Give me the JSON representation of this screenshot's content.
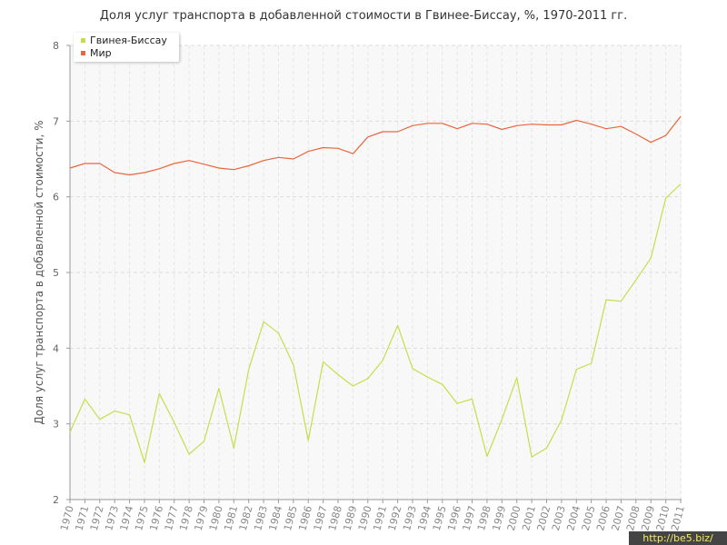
{
  "chart_data": {
    "type": "line",
    "title": "Доля услуг транспорта в добавленной стоимости в Гвинее-Биссау, %, 1970-2011 гг.",
    "ylabel": "Доля услуг транспорта в добавленной стоимости, %",
    "xlabel": "",
    "ylim": [
      2,
      8
    ],
    "yticks": [
      "2",
      "3",
      "4",
      "5",
      "6",
      "7",
      "8"
    ],
    "grid": true,
    "legend_position": "top-left",
    "x": [
      "1970",
      "1971",
      "1972",
      "1973",
      "1974",
      "1975",
      "1976",
      "1977",
      "1978",
      "1979",
      "1980",
      "1981",
      "1982",
      "1983",
      "1984",
      "1985",
      "1986",
      "1987",
      "1988",
      "1989",
      "1990",
      "1991",
      "1992",
      "1993",
      "1994",
      "1995",
      "1996",
      "1997",
      "1998",
      "1999",
      "2000",
      "2001",
      "2002",
      "2003",
      "2004",
      "2005",
      "2006",
      "2007",
      "2008",
      "2009",
      "2010",
      "2011"
    ],
    "series": [
      {
        "name": "Гвинея-Биссау",
        "color": "#c6dd4a",
        "values": [
          2.89,
          3.33,
          3.06,
          3.17,
          3.12,
          2.49,
          3.4,
          3.02,
          2.6,
          2.77,
          3.47,
          2.68,
          3.72,
          4.35,
          4.2,
          3.78,
          2.78,
          3.82,
          3.65,
          3.5,
          3.6,
          3.84,
          4.3,
          3.73,
          3.62,
          3.52,
          3.27,
          3.33,
          2.57,
          3.06,
          3.61,
          2.56,
          2.68,
          3.05,
          3.72,
          3.8,
          4.64,
          4.62,
          4.9,
          5.19,
          5.98,
          6.17
        ]
      },
      {
        "name": "Мир",
        "color": "#e8673c",
        "values": [
          6.38,
          6.44,
          6.44,
          6.32,
          6.29,
          6.32,
          6.37,
          6.44,
          6.48,
          6.43,
          6.38,
          6.36,
          6.41,
          6.48,
          6.52,
          6.5,
          6.6,
          6.65,
          6.64,
          6.57,
          6.79,
          6.86,
          6.86,
          6.94,
          6.97,
          6.97,
          6.9,
          6.97,
          6.96,
          6.89,
          6.94,
          6.96,
          6.95,
          6.95,
          7.01,
          6.96,
          6.9,
          6.93,
          6.83,
          6.72,
          6.81,
          7.06
        ]
      }
    ]
  },
  "watermark": "http://be5.biz/"
}
